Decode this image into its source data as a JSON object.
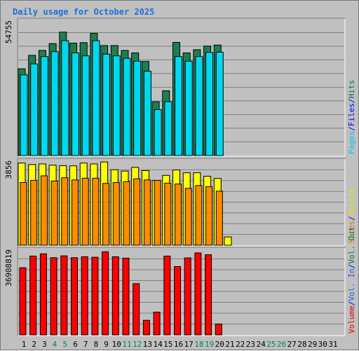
{
  "chart_data": {
    "title": "Daily usage for October 2025",
    "type": "bar",
    "days": [
      "1",
      "2",
      "3",
      "4",
      "5",
      "6",
      "7",
      "8",
      "9",
      "10",
      "11",
      "12",
      "13",
      "14",
      "15",
      "16",
      "17",
      "18",
      "19",
      "20",
      "21",
      "22",
      "23",
      "24",
      "25",
      "26",
      "27",
      "28",
      "29",
      "30",
      "31"
    ],
    "weekend_days": [
      "4",
      "5",
      "11",
      "12",
      "18",
      "19",
      "25",
      "26"
    ],
    "panels": [
      {
        "name": "hits-files-pages",
        "ymax_label": "54755",
        "ymax": 54755,
        "legend": [
          {
            "text": "Pages",
            "color": "#00c8e8"
          },
          {
            "text": "/",
            "color": "#0000ff"
          },
          {
            "text": "Files",
            "color": "#0000ff"
          },
          {
            "text": "/",
            "color": "#0000ff"
          },
          {
            "text": "Hits",
            "color": "#007a4a"
          }
        ],
        "series": [
          {
            "name": "Hits",
            "color": "#1a8050",
            "values": [
              35500,
              41000,
              43000,
              45800,
              50500,
              46000,
              46200,
              50000,
              45000,
              45000,
              43000,
              42000,
              38500,
              22000,
              26500,
              46300,
              42000,
              43300,
              44800,
              45200,
              null,
              0,
              0,
              0,
              0,
              0,
              0,
              0,
              0,
              0,
              0
            ]
          },
          {
            "name": "Files",
            "color": "#1a60c0",
            "values": [
              0,
              0,
              0,
              0,
              0,
              0,
              0,
              0,
              0,
              0,
              0,
              0,
              0,
              0,
              0,
              0,
              0,
              0,
              0,
              0,
              0,
              0,
              0,
              0,
              0,
              0,
              0,
              0,
              0,
              0,
              0
            ]
          },
          {
            "name": "Pages",
            "color": "#00d8f0",
            "values": [
              33000,
              37500,
              40500,
              42500,
              47000,
              42000,
              40800,
              47000,
              41500,
              40800,
              39800,
              38600,
              34500,
              18800,
              22000,
              40500,
              38600,
              40500,
              42200,
              42300,
              null,
              0,
              0,
              0,
              0,
              0,
              0,
              0,
              0,
              0,
              0
            ]
          }
        ]
      },
      {
        "name": "visits-sites",
        "ymax_label": "3856",
        "ymax": 3856,
        "legend": [
          {
            "text": "Sites",
            "color": "#e87800"
          },
          {
            "text": "/",
            "color": "#0000ff"
          },
          {
            "text": "Visits",
            "color": "#e8e800"
          }
        ],
        "series": [
          {
            "name": "Visits",
            "color": "#ffff00",
            "values": [
              3800,
              3730,
              3760,
              3700,
              3680,
              3670,
              3800,
              3760,
              3850,
              3490,
              3430,
              3600,
              3450,
              3000,
              3230,
              3480,
              3350,
              3350,
              3190,
              3090,
              380,
              0,
              0,
              0,
              0,
              0,
              0,
              0,
              0,
              0,
              0
            ]
          },
          {
            "name": "Sites",
            "color": "#ff8c00",
            "values": [
              2900,
              3000,
              3210,
              2970,
              3120,
              3020,
              3100,
              3100,
              2860,
              2900,
              2940,
              3070,
              3020,
              3000,
              2870,
              2830,
              2630,
              2760,
              2710,
              2500,
              null,
              0,
              0,
              0,
              0,
              0,
              0,
              0,
              0,
              0,
              0
            ]
          }
        ]
      },
      {
        "name": "volume",
        "ymax_label": "36908819",
        "ymax": 36908819,
        "legend": [
          {
            "text": "Volume",
            "color": "#e00000"
          },
          {
            "text": "/",
            "color": "#0000ff"
          },
          {
            "text": "Vol. In",
            "color": "#3060d0"
          },
          {
            "text": "/",
            "color": "#0000ff"
          },
          {
            "text": "Vol. Out",
            "color": "#007a4a"
          }
        ],
        "series": [
          {
            "name": "Volume",
            "color": "#ff0000",
            "values": [
              29500000,
              34600000,
              35600000,
              33900000,
              34700000,
              33900000,
              34300000,
              34100000,
              36500000,
              34300000,
              33700000,
              22500000,
              6400000,
              10000000,
              34600000,
              30000000,
              33800000,
              36000000,
              35200000,
              4800000,
              0,
              0,
              0,
              0,
              0,
              0,
              0,
              0,
              0,
              0,
              0
            ]
          }
        ]
      }
    ]
  }
}
